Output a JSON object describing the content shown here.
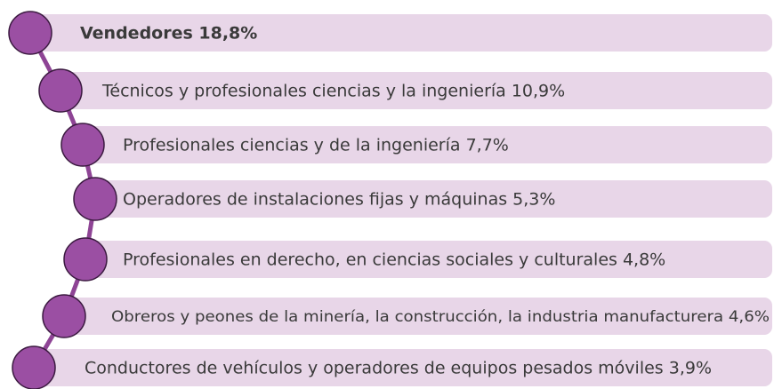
{
  "items": [
    {
      "label": "Vendedores 18,8%"
    },
    {
      "label": "Técnicos y profesionales ciencias y la ingeniería 10,9%"
    },
    {
      "label": "Profesionales ciencias y de la ingeniería 7,7%"
    },
    {
      "label": "Operadores de instalaciones fijas y máquinas 5,3%"
    },
    {
      "label": "Profesionales en derecho, en ciencias sociales y culturales 4,8%"
    },
    {
      "label": "Obreros y peones de la minería, la construcción, la industria manufacturera 4,6%"
    },
    {
      "label": "Conductores de vehículos y operadores de equipos pesados móviles 3,9%"
    }
  ]
}
